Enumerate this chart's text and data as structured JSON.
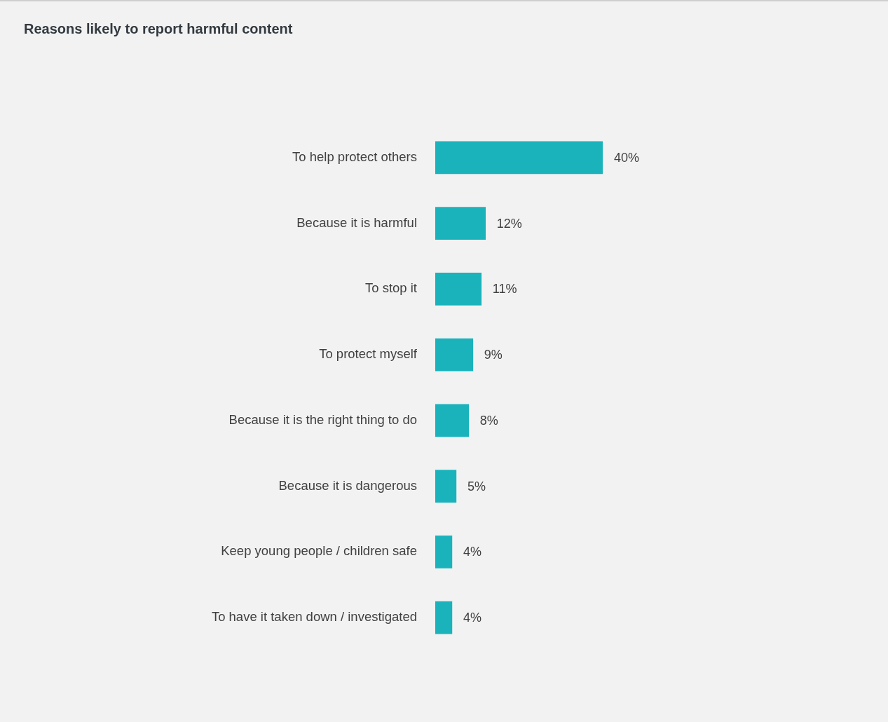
{
  "chart_data": {
    "type": "bar",
    "orientation": "horizontal",
    "title": "Reasons likely to report harmful content",
    "categories": [
      "To help protect others",
      "Because it is harmful",
      "To stop it",
      "To protect myself",
      "Because it is the right thing to do",
      "Because it is dangerous",
      "Keep young people / children safe",
      "To have it taken down / investigated"
    ],
    "values": [
      40,
      12,
      11,
      9,
      8,
      5,
      4,
      4
    ],
    "value_labels": [
      "40%",
      "12%",
      "11%",
      "9%",
      "8%",
      "5%",
      "4%",
      "4%"
    ],
    "color": "#1ab3bc"
  }
}
